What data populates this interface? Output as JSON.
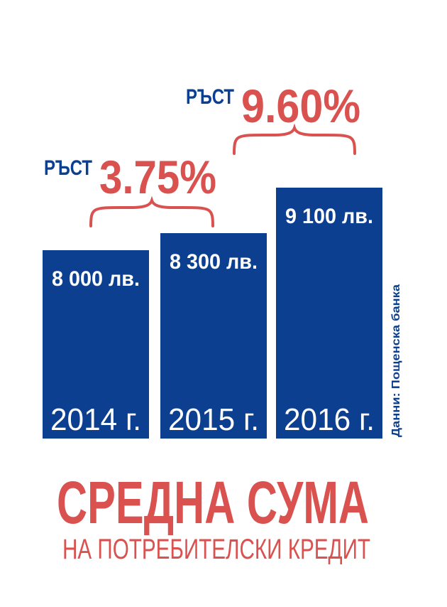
{
  "chart_data": {
    "type": "bar",
    "title": "СРЕДНА СУМА",
    "subtitle": "НА ПОТРЕБИТЕЛСКИ КРЕДИТ",
    "source": "Данни: Пощенска банка",
    "categories": [
      "2014 г.",
      "2015 г.",
      "2016 г."
    ],
    "values": [
      8000,
      8300,
      9100
    ],
    "value_labels": [
      "8 000 лв.",
      "8 300 лв.",
      "9 100 лв."
    ],
    "color": "#0c3f8f",
    "annotations": [
      {
        "label": "РЪСТ",
        "value": 3.75,
        "value_label": "3.75%"
      },
      {
        "label": "РЪСТ",
        "value": 9.6,
        "value_label": "9.60%"
      }
    ]
  }
}
